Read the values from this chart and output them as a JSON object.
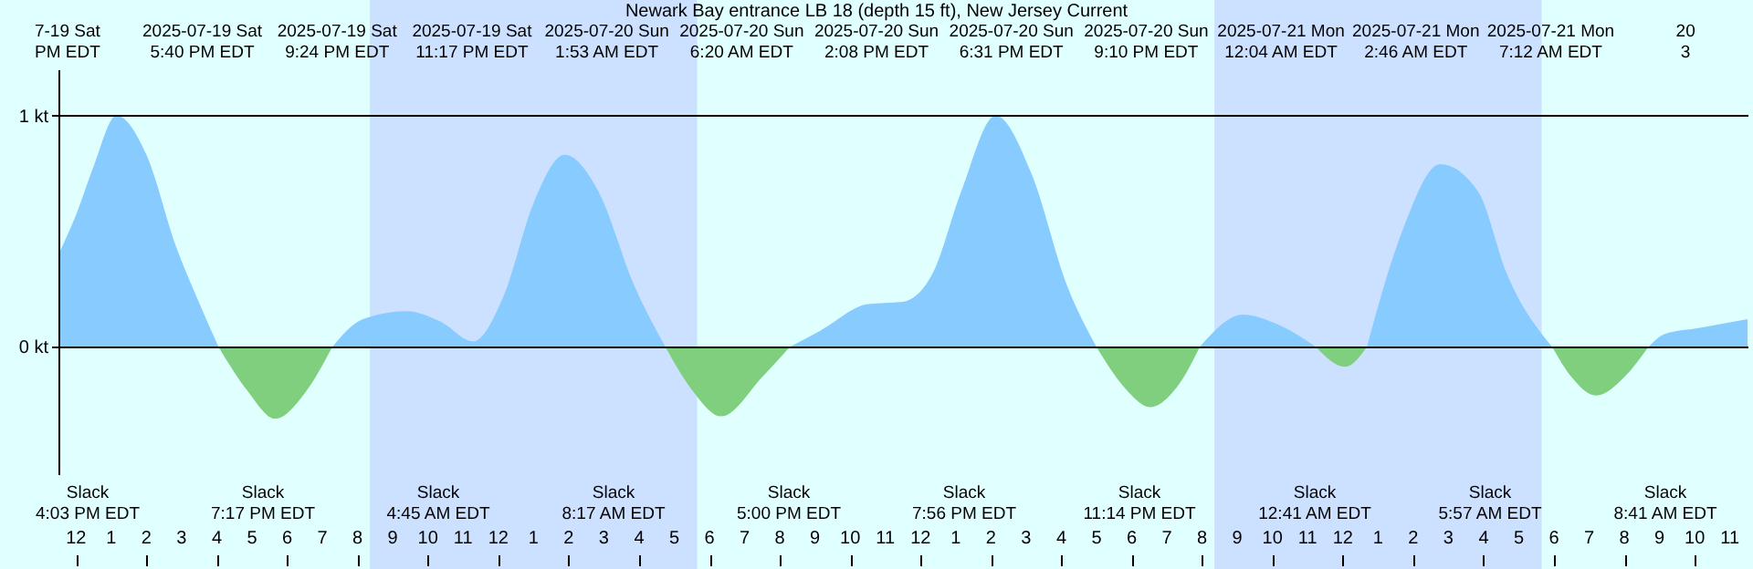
{
  "chart_data": {
    "type": "area",
    "title": "Newark Bay entrance LB 18 (depth 15 ft), New Jersey Current",
    "x": [
      "2025-07-19T11:30",
      "2025-07-19T12:00",
      "2025-07-19T12:30",
      "2025-07-19T13:09",
      "2025-07-19T14:00",
      "2025-07-19T14:51",
      "2025-07-19T15:30",
      "2025-07-19T16:03",
      "2025-07-19T16:51",
      "2025-07-19T17:40",
      "2025-07-19T18:30",
      "2025-07-19T19:17",
      "2025-07-19T20:09",
      "2025-07-19T21:24",
      "2025-07-19T22:21",
      "2025-07-19T23:17",
      "2025-07-20T00:09",
      "2025-07-20T01:00",
      "2025-07-20T01:53",
      "2025-07-20T02:51",
      "2025-07-20T03:51",
      "2025-07-20T04:45",
      "2025-07-20T05:30",
      "2025-07-20T06:20",
      "2025-07-20T07:30",
      "2025-07-20T08:17",
      "2025-07-20T09:09",
      "2025-07-20T10:30",
      "2025-07-20T11:30",
      "2025-07-20T12:21",
      "2025-07-20T13:09",
      "2025-07-20T14:08",
      "2025-07-20T15:09",
      "2025-07-20T16:09",
      "2025-07-20T17:00",
      "2025-07-20T17:51",
      "2025-07-20T18:31",
      "2025-07-20T19:21",
      "2025-07-20T19:56",
      "2025-07-20T21:10",
      "2025-07-20T22:09",
      "2025-07-20T23:14",
      "2025-07-21T00:04",
      "2025-07-21T00:41",
      "2025-07-21T01:39",
      "2025-07-21T02:46",
      "2025-07-21T03:51",
      "2025-07-21T04:39",
      "2025-07-21T05:57",
      "2025-07-21T06:30",
      "2025-07-21T07:12",
      "2025-07-21T08:00",
      "2025-07-21T08:41",
      "2025-07-21T09:09",
      "2025-07-21T10:09",
      "2025-07-21T11:30"
    ],
    "series": [
      {
        "color": "#87cbff",
        "values": [
          0.4,
          0.57,
          0.78,
          1.0,
          0.83,
          0.43,
          0.19,
          0,
          null,
          null,
          null,
          0,
          0.12,
          0.155,
          0.11,
          0.024,
          0.22,
          0.62,
          0.83,
          0.67,
          0.27,
          0,
          null,
          null,
          null,
          0,
          0.07,
          0.185,
          0.195,
          0.32,
          0.67,
          1.0,
          0.75,
          0.27,
          0,
          null,
          null,
          null,
          0,
          0.14,
          0.097,
          0,
          null,
          0,
          0.485,
          0.79,
          0.67,
          0.32,
          0,
          null,
          null,
          null,
          0,
          0.056,
          0.083,
          0.12
        ]
      },
      {
        "color": "#7fcf7f",
        "values": [
          null,
          null,
          null,
          null,
          null,
          null,
          null,
          0,
          -0.185,
          -0.31,
          -0.2,
          0,
          null,
          null,
          null,
          null,
          null,
          null,
          null,
          null,
          null,
          0,
          -0.185,
          -0.3,
          -0.13,
          0,
          null,
          null,
          null,
          null,
          null,
          null,
          null,
          null,
          0,
          -0.185,
          -0.26,
          -0.16,
          0,
          null,
          null,
          0,
          -0.086,
          0,
          null,
          null,
          null,
          null,
          0,
          -0.13,
          -0.21,
          -0.13,
          0,
          null,
          null,
          null
        ]
      }
    ],
    "xlim": [
      "2025-07-19T11:30",
      "2025-07-21T11:30"
    ],
    "xticks": [
      {
        "value": "2025-07-19T12:00",
        "label": "12"
      },
      {
        "value": "2025-07-19T13:00",
        "label": "1"
      },
      {
        "value": "2025-07-19T14:00",
        "label": "2"
      },
      {
        "value": "2025-07-19T15:00",
        "label": "3"
      },
      {
        "value": "2025-07-19T16:00",
        "label": "4"
      },
      {
        "value": "2025-07-19T17:00",
        "label": "5"
      },
      {
        "value": "2025-07-19T18:00",
        "label": "6"
      },
      {
        "value": "2025-07-19T19:00",
        "label": "7"
      },
      {
        "value": "2025-07-19T20:00",
        "label": "8"
      },
      {
        "value": "2025-07-19T21:00",
        "label": "9"
      },
      {
        "value": "2025-07-19T22:00",
        "label": "10"
      },
      {
        "value": "2025-07-19T23:00",
        "label": "11"
      },
      {
        "value": "2025-07-20T00:00",
        "label": "12"
      },
      {
        "value": "2025-07-20T01:00",
        "label": "1"
      },
      {
        "value": "2025-07-20T02:00",
        "label": "2"
      },
      {
        "value": "2025-07-20T03:00",
        "label": "3"
      },
      {
        "value": "2025-07-20T04:00",
        "label": "4"
      },
      {
        "value": "2025-07-20T05:00",
        "label": "5"
      },
      {
        "value": "2025-07-20T06:00",
        "label": "6"
      },
      {
        "value": "2025-07-20T07:00",
        "label": "7"
      },
      {
        "value": "2025-07-20T08:00",
        "label": "8"
      },
      {
        "value": "2025-07-20T09:00",
        "label": "9"
      },
      {
        "value": "2025-07-20T10:00",
        "label": "10"
      },
      {
        "value": "2025-07-20T11:00",
        "label": "11"
      },
      {
        "value": "2025-07-20T12:00",
        "label": "12"
      },
      {
        "value": "2025-07-20T13:00",
        "label": "1"
      },
      {
        "value": "2025-07-20T14:00",
        "label": "2"
      },
      {
        "value": "2025-07-20T15:00",
        "label": "3"
      },
      {
        "value": "2025-07-20T16:00",
        "label": "4"
      },
      {
        "value": "2025-07-20T17:00",
        "label": "5"
      },
      {
        "value": "2025-07-20T18:00",
        "label": "6"
      },
      {
        "value": "2025-07-20T19:00",
        "label": "7"
      },
      {
        "value": "2025-07-20T20:00",
        "label": "8"
      },
      {
        "value": "2025-07-20T21:00",
        "label": "9"
      },
      {
        "value": "2025-07-20T22:00",
        "label": "10"
      },
      {
        "value": "2025-07-20T23:00",
        "label": "11"
      },
      {
        "value": "2025-07-21T00:00",
        "label": "12"
      },
      {
        "value": "2025-07-21T01:00",
        "label": "1"
      },
      {
        "value": "2025-07-21T02:00",
        "label": "2"
      },
      {
        "value": "2025-07-21T03:00",
        "label": "3"
      },
      {
        "value": "2025-07-21T04:00",
        "label": "4"
      },
      {
        "value": "2025-07-21T05:00",
        "label": "5"
      },
      {
        "value": "2025-07-21T06:00",
        "label": "6"
      },
      {
        "value": "2025-07-21T07:00",
        "label": "7"
      },
      {
        "value": "2025-07-21T08:00",
        "label": "8"
      },
      {
        "value": "2025-07-21T09:00",
        "label": "9"
      },
      {
        "value": "2025-07-21T10:00",
        "label": "10"
      },
      {
        "value": "2025-07-21T11:00",
        "label": "11"
      }
    ],
    "ylim": [
      -0.55,
      1.2
    ],
    "yticks": [
      {
        "value": 0,
        "label": "0 kt"
      },
      {
        "value": 1,
        "label": "1 kt"
      }
    ],
    "grid": "y",
    "bands": [
      {
        "axis": "x",
        "from": "2025-07-19T20:21",
        "to": "2025-07-20T05:39",
        "color": "#cce0ff"
      },
      {
        "axis": "x",
        "from": "2025-07-20T20:21",
        "to": "2025-07-21T05:39",
        "color": "#cce0ff"
      }
    ],
    "annotations": [
      "7-19 Sat\nPM EDT",
      "2025-07-19 Sat\n5:40 PM EDT",
      "2025-07-19 Sat\n9:24 PM EDT",
      "2025-07-19 Sat\n11:17 PM EDT",
      "2025-07-20 Sun\n1:53 AM EDT",
      "2025-07-20 Sun\n6:20 AM EDT",
      "2025-07-20 Sun\n2:08 PM EDT",
      "2025-07-20 Sun\n6:31 PM EDT",
      "2025-07-20 Sun\n9:10 PM EDT",
      "2025-07-21 Mon\n12:04 AM EDT",
      "2025-07-21 Mon\n2:46 AM EDT",
      "2025-07-21 Mon\n7:12 AM EDT",
      "20\n3",
      "Slack\n4:03 PM EDT",
      "Slack\n7:17 PM EDT",
      "Slack\n4:45 AM EDT",
      "Slack\n8:17 AM EDT",
      "Slack\n5:00 PM EDT",
      "Slack\n7:56 PM EDT",
      "Slack\n11:14 PM EDT",
      "Slack\n12:41 AM EDT",
      "Slack\n5:57 AM EDT",
      "Slack\n8:41 AM EDT"
    ]
  }
}
